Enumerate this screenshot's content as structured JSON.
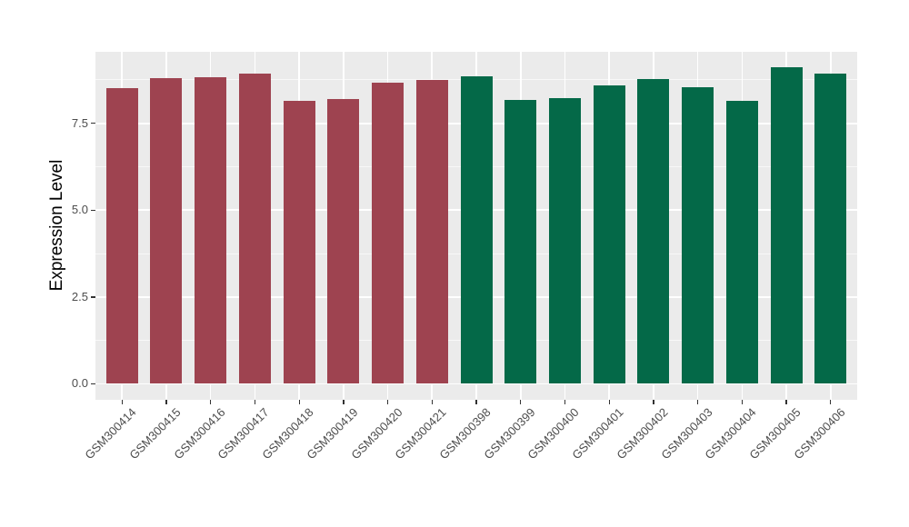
{
  "figure": {
    "background": "#FFFFFF",
    "panel_background": "#EBEBEB",
    "grid_major_color": "#FFFFFF",
    "grid_minor_color": "#FFFFFF",
    "tick_color": "#333333",
    "tick_label_color": "#4D4D4D",
    "axis_title_color": "#000000"
  },
  "chart_data": {
    "type": "bar",
    "title": "",
    "xlabel": "",
    "ylabel": "Expression Level",
    "categories": [
      "GSM300414",
      "GSM300415",
      "GSM300416",
      "GSM300417",
      "GSM300418",
      "GSM300419",
      "GSM300420",
      "GSM300421",
      "GSM300398",
      "GSM300399",
      "GSM300400",
      "GSM300401",
      "GSM300402",
      "GSM300403",
      "GSM300404",
      "GSM300405",
      "GSM300406"
    ],
    "values": [
      8.51,
      8.8,
      8.84,
      8.93,
      8.16,
      8.2,
      8.66,
      8.74,
      8.85,
      8.18,
      8.22,
      8.6,
      8.77,
      8.55,
      8.15,
      9.11,
      8.93
    ],
    "groups": [
      "red",
      "red",
      "red",
      "red",
      "red",
      "red",
      "red",
      "red",
      "green",
      "green",
      "green",
      "green",
      "green",
      "green",
      "green",
      "green",
      "green"
    ],
    "group_colors": {
      "red": "#9E4350",
      "green": "#046948"
    },
    "yticks": [
      0.0,
      2.5,
      5.0,
      7.5
    ],
    "ytick_labels": [
      "0.0",
      "2.5",
      "5.0",
      "7.5"
    ],
    "minor_yticks": [
      1.25,
      3.75,
      6.25,
      8.75
    ],
    "ylim": [
      -0.46,
      9.56
    ],
    "grid": "on",
    "legend": "none",
    "bar_orientation": "vertical",
    "x_label_rotation_deg": 45
  }
}
